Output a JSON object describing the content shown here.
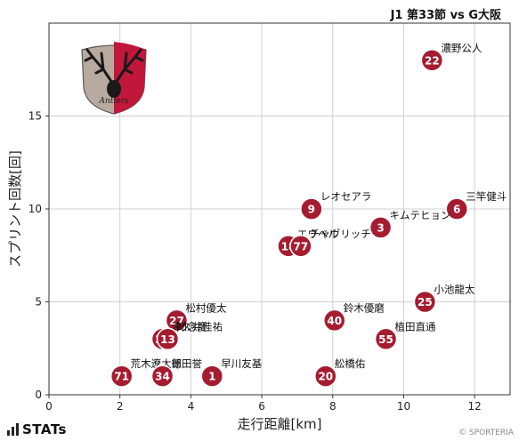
{
  "header": {
    "title": "J1 第33節 vs G大阪"
  },
  "footer": {
    "brand": "STATs",
    "credit": "© SPORTERIA"
  },
  "colors": {
    "marker": "#a51c30",
    "marker_edge": "#ffffff",
    "grid": "#d0d0d0"
  },
  "logo": {
    "name": "kashima-antlers-emblem",
    "text": "Antlers"
  },
  "chart_data": {
    "type": "scatter",
    "title": "",
    "xlabel": "走行距離[km]",
    "ylabel": "スプリント回数[回]",
    "xlim": [
      0,
      13
    ],
    "ylim": [
      0,
      20
    ],
    "xticks": [
      0,
      2,
      4,
      6,
      8,
      10,
      12
    ],
    "yticks": [
      0,
      5,
      10,
      15
    ],
    "grid": true,
    "points": [
      {
        "number": "22",
        "name": "濃野公人",
        "x": 10.8,
        "y": 18
      },
      {
        "number": "9",
        "name": "レオセアラ",
        "x": 7.4,
        "y": 10
      },
      {
        "number": "6",
        "name": "三竿健斗",
        "x": 11.5,
        "y": 10
      },
      {
        "number": "3",
        "name": "キムテヒョン",
        "x": 9.35,
        "y": 9
      },
      {
        "number": "18",
        "name": "エウベル",
        "x": 6.75,
        "y": 8
      },
      {
        "number": "77",
        "name": "チャヴリッチ",
        "x": 7.1,
        "y": 8
      },
      {
        "number": "25",
        "name": "小池龍太",
        "x": 10.6,
        "y": 5
      },
      {
        "number": "27",
        "name": "松村優太",
        "x": 3.6,
        "y": 4
      },
      {
        "number": "40",
        "name": "鈴木優磨",
        "x": 8.05,
        "y": 4
      },
      {
        "number": "23",
        "name": "津久井佳祐",
        "x": 3.2,
        "y": 3
      },
      {
        "number": "13",
        "name": "知念慶",
        "x": 3.35,
        "y": 3
      },
      {
        "number": "55",
        "name": "植田直通",
        "x": 9.5,
        "y": 3
      },
      {
        "number": "71",
        "name": "荒木遼太郎",
        "x": 2.05,
        "y": 1
      },
      {
        "number": "34",
        "name": "徳田誉",
        "x": 3.2,
        "y": 1
      },
      {
        "number": "1",
        "name": "早川友基",
        "x": 4.6,
        "y": 1
      },
      {
        "number": "20",
        "name": "舩橋佑",
        "x": 7.8,
        "y": 1
      }
    ]
  }
}
